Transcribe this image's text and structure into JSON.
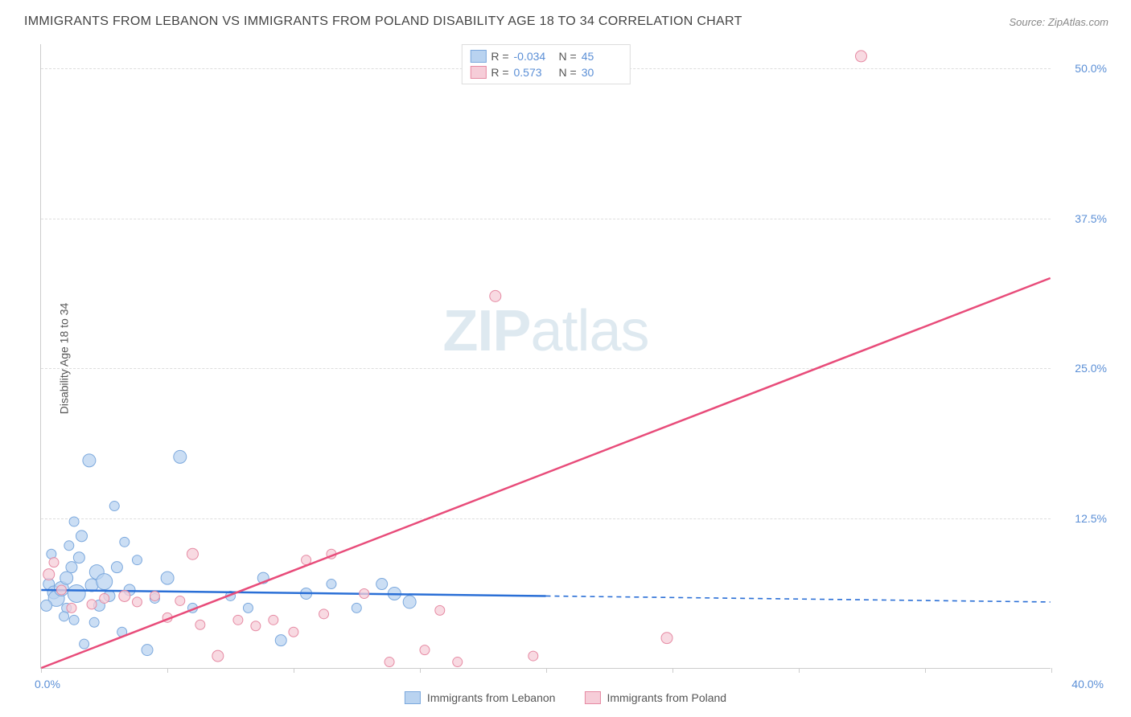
{
  "title": "IMMIGRANTS FROM LEBANON VS IMMIGRANTS FROM POLAND DISABILITY AGE 18 TO 34 CORRELATION CHART",
  "source": "Source: ZipAtlas.com",
  "y_axis_label": "Disability Age 18 to 34",
  "watermark_bold": "ZIP",
  "watermark_rest": "atlas",
  "chart": {
    "type": "scatter_with_regression",
    "xlim": [
      0,
      40
    ],
    "ylim": [
      0,
      52
    ],
    "x_tick_positions": [
      0,
      5,
      10,
      15,
      20,
      25,
      30,
      35,
      40
    ],
    "x_tick_labels_shown": {
      "0": "0.0%",
      "40": "40.0%"
    },
    "y_ticks": [
      {
        "value": 12.5,
        "label": "12.5%"
      },
      {
        "value": 25.0,
        "label": "25.0%"
      },
      {
        "value": 37.5,
        "label": "37.5%"
      },
      {
        "value": 50.0,
        "label": "50.0%"
      }
    ],
    "grid_color": "#dddddd",
    "background_color": "#ffffff",
    "axis_color": "#cccccc",
    "tick_label_color": "#5b8fd6"
  },
  "series": [
    {
      "name": "Immigrants from Lebanon",
      "r_value": "-0.034",
      "n_value": "45",
      "marker_fill": "#b9d3f0",
      "marker_stroke": "#7ba8dd",
      "marker_radius_range": [
        5,
        12
      ],
      "line_color": "#2a6fd6",
      "line_solid_xmax": 20,
      "regression": {
        "x1": 0,
        "y1": 6.5,
        "x2": 40,
        "y2": 5.5
      },
      "points": [
        {
          "x": 0.3,
          "y": 7.0,
          "r": 7
        },
        {
          "x": 0.5,
          "y": 6.3,
          "r": 8
        },
        {
          "x": 0.6,
          "y": 5.8,
          "r": 10
        },
        {
          "x": 0.8,
          "y": 6.6,
          "r": 9
        },
        {
          "x": 1.0,
          "y": 7.5,
          "r": 8
        },
        {
          "x": 1.0,
          "y": 5.0,
          "r": 6
        },
        {
          "x": 1.2,
          "y": 8.4,
          "r": 7
        },
        {
          "x": 1.3,
          "y": 4.0,
          "r": 6
        },
        {
          "x": 1.4,
          "y": 6.2,
          "r": 11
        },
        {
          "x": 1.5,
          "y": 9.2,
          "r": 7
        },
        {
          "x": 1.6,
          "y": 11.0,
          "r": 7
        },
        {
          "x": 1.7,
          "y": 2.0,
          "r": 6
        },
        {
          "x": 1.9,
          "y": 17.3,
          "r": 8
        },
        {
          "x": 2.0,
          "y": 6.9,
          "r": 8
        },
        {
          "x": 2.2,
          "y": 8.0,
          "r": 9
        },
        {
          "x": 2.3,
          "y": 5.2,
          "r": 7
        },
        {
          "x": 2.5,
          "y": 7.2,
          "r": 10
        },
        {
          "x": 2.7,
          "y": 6.0,
          "r": 7
        },
        {
          "x": 2.9,
          "y": 13.5,
          "r": 6
        },
        {
          "x": 3.0,
          "y": 8.4,
          "r": 7
        },
        {
          "x": 3.2,
          "y": 3.0,
          "r": 6
        },
        {
          "x": 3.5,
          "y": 6.5,
          "r": 7
        },
        {
          "x": 3.8,
          "y": 9.0,
          "r": 6
        },
        {
          "x": 4.2,
          "y": 1.5,
          "r": 7
        },
        {
          "x": 4.5,
          "y": 5.8,
          "r": 6
        },
        {
          "x": 5.0,
          "y": 7.5,
          "r": 8
        },
        {
          "x": 5.5,
          "y": 17.6,
          "r": 8
        },
        {
          "x": 6.0,
          "y": 5.0,
          "r": 6
        },
        {
          "x": 1.1,
          "y": 10.2,
          "r": 6
        },
        {
          "x": 0.4,
          "y": 9.5,
          "r": 6
        },
        {
          "x": 7.5,
          "y": 6.0,
          "r": 6
        },
        {
          "x": 8.2,
          "y": 5.0,
          "r": 6
        },
        {
          "x": 8.8,
          "y": 7.5,
          "r": 7
        },
        {
          "x": 9.5,
          "y": 2.3,
          "r": 7
        },
        {
          "x": 10.5,
          "y": 6.2,
          "r": 7
        },
        {
          "x": 11.5,
          "y": 7.0,
          "r": 6
        },
        {
          "x": 12.5,
          "y": 5.0,
          "r": 6
        },
        {
          "x": 13.5,
          "y": 7.0,
          "r": 7
        },
        {
          "x": 14.0,
          "y": 6.2,
          "r": 8
        },
        {
          "x": 14.6,
          "y": 5.5,
          "r": 8
        },
        {
          "x": 3.3,
          "y": 10.5,
          "r": 6
        },
        {
          "x": 0.9,
          "y": 4.3,
          "r": 6
        },
        {
          "x": 2.1,
          "y": 3.8,
          "r": 6
        },
        {
          "x": 1.3,
          "y": 12.2,
          "r": 6
        },
        {
          "x": 0.2,
          "y": 5.2,
          "r": 7
        }
      ]
    },
    {
      "name": "Immigrants from Poland",
      "r_value": "0.573",
      "n_value": "30",
      "marker_fill": "#f6cdd8",
      "marker_stroke": "#e68aa3",
      "marker_radius_range": [
        5,
        9
      ],
      "line_color": "#e84c7a",
      "line_solid_xmax": 40,
      "regression": {
        "x1": 0,
        "y1": 0.0,
        "x2": 40,
        "y2": 32.5
      },
      "points": [
        {
          "x": 0.3,
          "y": 7.8,
          "r": 7
        },
        {
          "x": 0.5,
          "y": 8.8,
          "r": 6
        },
        {
          "x": 0.8,
          "y": 6.5,
          "r": 6
        },
        {
          "x": 1.2,
          "y": 5.0,
          "r": 6
        },
        {
          "x": 2.0,
          "y": 5.3,
          "r": 6
        },
        {
          "x": 2.5,
          "y": 5.8,
          "r": 6
        },
        {
          "x": 3.3,
          "y": 6.0,
          "r": 7
        },
        {
          "x": 3.8,
          "y": 5.5,
          "r": 6
        },
        {
          "x": 4.5,
          "y": 6.0,
          "r": 6
        },
        {
          "x": 5.0,
          "y": 4.2,
          "r": 6
        },
        {
          "x": 5.5,
          "y": 5.6,
          "r": 6
        },
        {
          "x": 6.0,
          "y": 9.5,
          "r": 7
        },
        {
          "x": 6.3,
          "y": 3.6,
          "r": 6
        },
        {
          "x": 7.0,
          "y": 1.0,
          "r": 7
        },
        {
          "x": 7.8,
          "y": 4.0,
          "r": 6
        },
        {
          "x": 8.5,
          "y": 3.5,
          "r": 6
        },
        {
          "x": 9.2,
          "y": 4.0,
          "r": 6
        },
        {
          "x": 10.0,
          "y": 3.0,
          "r": 6
        },
        {
          "x": 10.5,
          "y": 9.0,
          "r": 6
        },
        {
          "x": 11.2,
          "y": 4.5,
          "r": 6
        },
        {
          "x": 11.5,
          "y": 9.5,
          "r": 6
        },
        {
          "x": 12.8,
          "y": 6.2,
          "r": 6
        },
        {
          "x": 13.8,
          "y": 0.5,
          "r": 6
        },
        {
          "x": 15.2,
          "y": 1.5,
          "r": 6
        },
        {
          "x": 15.8,
          "y": 4.8,
          "r": 6
        },
        {
          "x": 16.5,
          "y": 0.5,
          "r": 6
        },
        {
          "x": 18.0,
          "y": 31.0,
          "r": 7
        },
        {
          "x": 19.5,
          "y": 1.0,
          "r": 6
        },
        {
          "x": 24.8,
          "y": 2.5,
          "r": 7
        },
        {
          "x": 32.5,
          "y": 51.0,
          "r": 7
        }
      ]
    }
  ],
  "stats_legend_labels": {
    "r_prefix": "R =",
    "n_prefix": "N ="
  },
  "bottom_legend": [
    {
      "label": "Immigrants from Lebanon",
      "fill": "#b9d3f0",
      "stroke": "#7ba8dd"
    },
    {
      "label": "Immigrants from Poland",
      "fill": "#f6cdd8",
      "stroke": "#e68aa3"
    }
  ]
}
